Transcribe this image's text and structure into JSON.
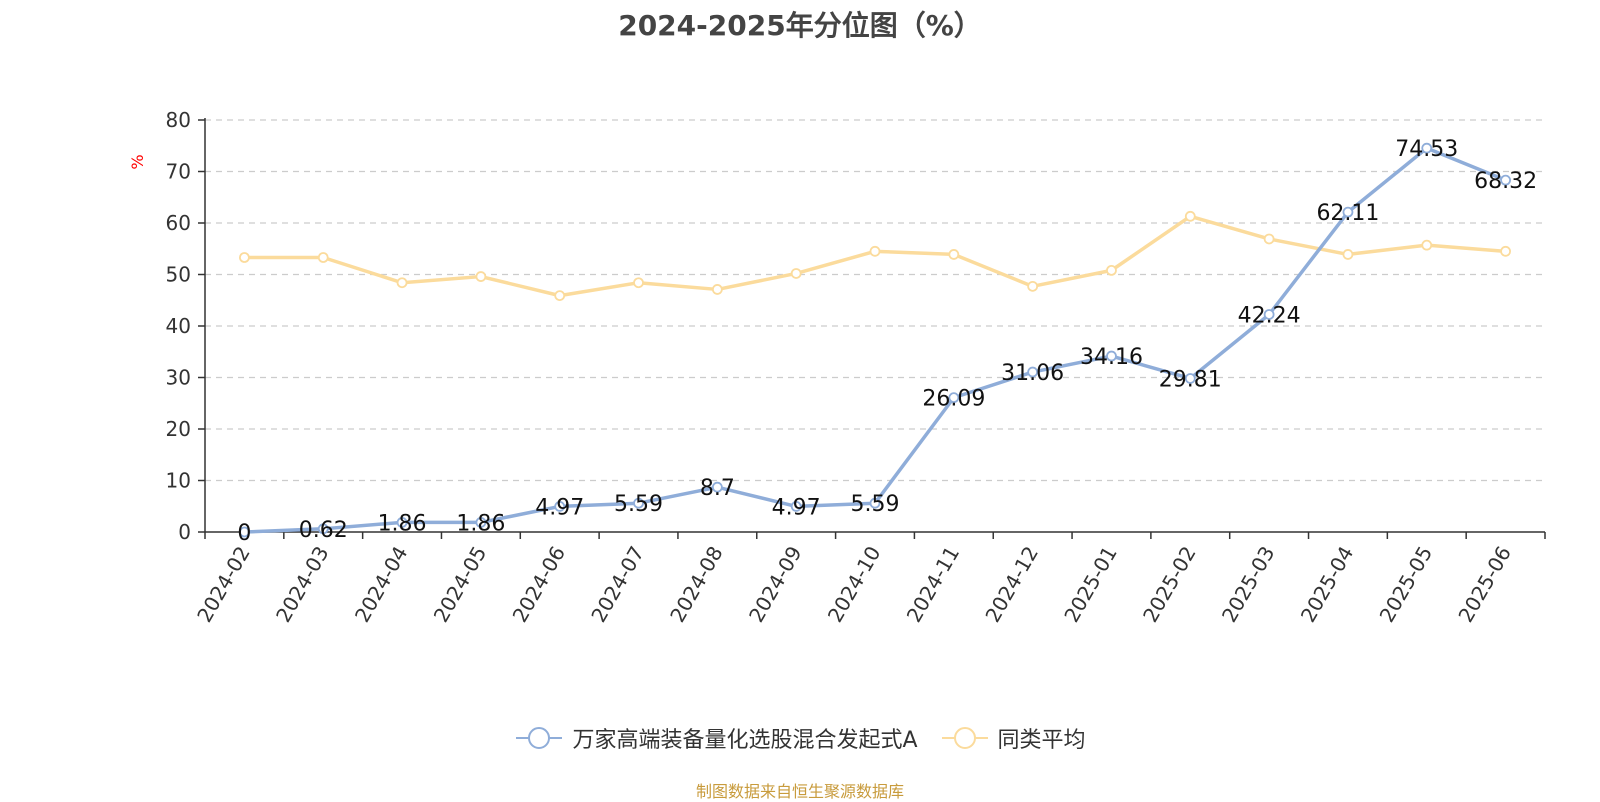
{
  "chart_data": {
    "type": "line",
    "title": "2024-2025年分位图（%）",
    "ylabel": "%",
    "xlabel": "",
    "ylim": [
      0,
      80
    ],
    "yticks": [
      0,
      10,
      20,
      30,
      40,
      50,
      60,
      70,
      80
    ],
    "grid": true,
    "legend_position": "bottom-center",
    "categories": [
      "2024-02",
      "2024-03",
      "2024-04",
      "2024-05",
      "2024-06",
      "2024-07",
      "2024-08",
      "2024-09",
      "2024-10",
      "2024-11",
      "2024-12",
      "2025-01",
      "2025-02",
      "2025-03",
      "2025-04",
      "2025-05",
      "2025-06"
    ],
    "series": [
      {
        "name": "万家高端装备量化选股混合发起式A",
        "color": "#8fadd9",
        "show_labels": true,
        "values": [
          0,
          0.62,
          1.86,
          1.86,
          4.97,
          5.59,
          8.7,
          4.97,
          5.59,
          26.09,
          31.06,
          34.16,
          29.81,
          42.24,
          62.11,
          74.53,
          68.32
        ]
      },
      {
        "name": "同类平均",
        "color": "#fbdb9c",
        "show_labels": false,
        "values": [
          53.3,
          53.3,
          48.4,
          49.6,
          45.9,
          48.4,
          47.1,
          50.2,
          54.5,
          53.9,
          47.7,
          50.8,
          61.3,
          56.9,
          53.9,
          55.7,
          54.5
        ]
      }
    ]
  },
  "footer": {
    "source": "制图数据来自恒生聚源数据库"
  },
  "colors": {
    "axis": "#333333",
    "grid": "#cccccc",
    "ylabel": "#ff0000"
  }
}
